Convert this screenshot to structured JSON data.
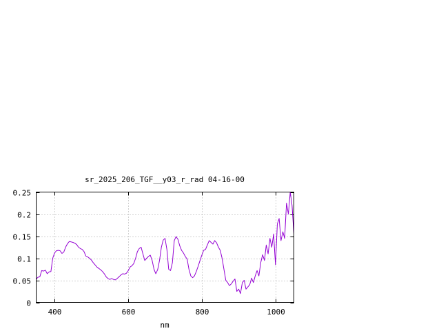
{
  "chart_data": {
    "type": "line",
    "title": "sr_2025_206_TGF__y03_r_rad 04-16-00",
    "xlabel": "nm",
    "ylabel": "",
    "xlim": [
      350,
      1050
    ],
    "ylim": [
      0,
      0.25
    ],
    "xticks": [
      400,
      600,
      800,
      1000
    ],
    "xtick_labels": [
      "400",
      "600",
      "800",
      "1000"
    ],
    "yticks": [
      0,
      0.05,
      0.1,
      0.15,
      0.2,
      0.25
    ],
    "ytick_labels": [
      "0",
      "0.05",
      "0.1",
      "0.15",
      "0.2",
      "0.25"
    ],
    "grid": true,
    "legend": "none",
    "series": [
      {
        "color": "#9400d3",
        "x": [
          350,
          355,
          360,
          365,
          370,
          375,
          380,
          385,
          390,
          395,
          400,
          405,
          410,
          415,
          420,
          425,
          430,
          435,
          440,
          445,
          450,
          455,
          460,
          465,
          470,
          475,
          480,
          485,
          490,
          495,
          500,
          505,
          510,
          515,
          520,
          525,
          530,
          535,
          540,
          545,
          550,
          555,
          560,
          565,
          570,
          575,
          580,
          585,
          590,
          595,
          600,
          605,
          610,
          615,
          620,
          625,
          630,
          635,
          640,
          645,
          650,
          655,
          660,
          665,
          670,
          675,
          680,
          685,
          690,
          695,
          700,
          705,
          710,
          715,
          720,
          725,
          730,
          735,
          740,
          745,
          750,
          755,
          760,
          765,
          770,
          775,
          780,
          785,
          790,
          795,
          800,
          805,
          810,
          815,
          820,
          825,
          830,
          835,
          840,
          845,
          850,
          855,
          860,
          865,
          870,
          875,
          880,
          885,
          890,
          895,
          900,
          905,
          910,
          915,
          920,
          925,
          930,
          935,
          940,
          945,
          950,
          955,
          960,
          965,
          970,
          975,
          980,
          985,
          990,
          995,
          1000,
          1005,
          1010,
          1015,
          1020,
          1025,
          1030,
          1035,
          1040,
          1045,
          1050
        ],
        "y": [
          0.053,
          0.057,
          0.058,
          0.072,
          0.071,
          0.073,
          0.065,
          0.069,
          0.07,
          0.1,
          0.112,
          0.117,
          0.118,
          0.117,
          0.111,
          0.114,
          0.125,
          0.133,
          0.138,
          0.137,
          0.136,
          0.134,
          0.131,
          0.125,
          0.122,
          0.12,
          0.115,
          0.105,
          0.103,
          0.1,
          0.096,
          0.09,
          0.085,
          0.08,
          0.077,
          0.074,
          0.07,
          0.065,
          0.058,
          0.054,
          0.052,
          0.054,
          0.052,
          0.051,
          0.054,
          0.058,
          0.062,
          0.065,
          0.064,
          0.066,
          0.072,
          0.08,
          0.083,
          0.088,
          0.1,
          0.115,
          0.122,
          0.125,
          0.11,
          0.095,
          0.1,
          0.104,
          0.107,
          0.095,
          0.075,
          0.065,
          0.074,
          0.095,
          0.125,
          0.141,
          0.145,
          0.12,
          0.075,
          0.072,
          0.09,
          0.14,
          0.149,
          0.143,
          0.128,
          0.118,
          0.112,
          0.104,
          0.098,
          0.075,
          0.06,
          0.056,
          0.06,
          0.07,
          0.082,
          0.095,
          0.107,
          0.118,
          0.12,
          0.13,
          0.14,
          0.136,
          0.132,
          0.14,
          0.135,
          0.125,
          0.118,
          0.1,
          0.075,
          0.05,
          0.045,
          0.038,
          0.042,
          0.048,
          0.053,
          0.025,
          0.03,
          0.02,
          0.045,
          0.05,
          0.03,
          0.035,
          0.04,
          0.055,
          0.045,
          0.06,
          0.072,
          0.06,
          0.09,
          0.108,
          0.095,
          0.13,
          0.11,
          0.145,
          0.125,
          0.155,
          0.085,
          0.178,
          0.19,
          0.14,
          0.16,
          0.145,
          0.225,
          0.2,
          0.25,
          0.22,
          0.155
        ]
      }
    ]
  }
}
